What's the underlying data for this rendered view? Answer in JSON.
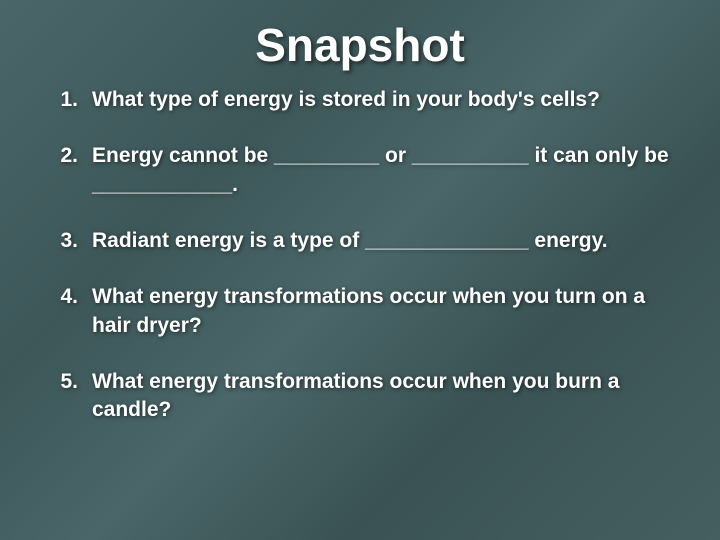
{
  "slide": {
    "title": "Snapshot",
    "title_fontsize": 46,
    "body_fontsize": 21,
    "text_color": "#ffffff",
    "background_colors": [
      "#4a6668",
      "#3d5759",
      "#4a6668",
      "#3a5254",
      "#455f61"
    ],
    "shadow_color": "rgba(0,0,0,0.6)",
    "items": [
      {
        "num": "1.",
        "text": "What type of energy is stored in your body's cells?"
      },
      {
        "num": "2.",
        "text": "Energy cannot be _________ or __________ it can only be ____________."
      },
      {
        "num": "3.",
        "text": "Radiant energy is a type of ______________ energy."
      },
      {
        "num": "4.",
        "text": "What energy transformations occur when you turn on a hair dryer?"
      },
      {
        "num": "5.",
        "text": "What energy transformations occur when you burn a candle?"
      }
    ]
  }
}
